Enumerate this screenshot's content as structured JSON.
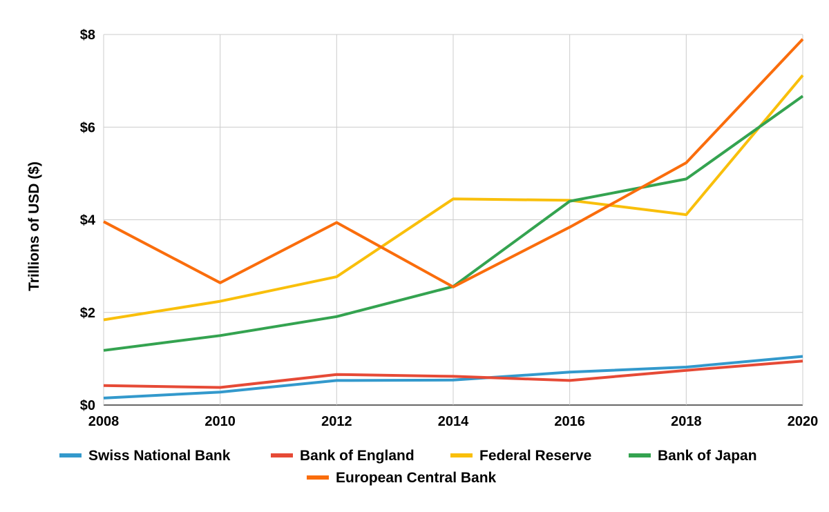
{
  "chart_data": {
    "type": "line",
    "title": "",
    "xlabel": "",
    "ylabel": "Trillions of USD ($)",
    "x": [
      2008,
      2010,
      2012,
      2014,
      2016,
      2018,
      2020
    ],
    "xlim": [
      2008,
      2020
    ],
    "ylim": [
      0,
      8
    ],
    "y_ticks": [
      0,
      2,
      4,
      6,
      8
    ],
    "y_tick_labels": [
      "$0",
      "$2",
      "$4",
      "$6",
      "$8"
    ],
    "grid": true,
    "legend_position": "bottom",
    "series": [
      {
        "name": "Swiss National Bank",
        "color": "#3399cc",
        "values": [
          0.15,
          0.28,
          0.53,
          0.54,
          0.71,
          0.82,
          1.05
        ]
      },
      {
        "name": "Bank of England",
        "color": "#e64a36",
        "values": [
          0.42,
          0.38,
          0.66,
          0.62,
          0.53,
          0.75,
          0.95
        ]
      },
      {
        "name": "Federal Reserve",
        "color": "#f9bf0b",
        "values": [
          1.84,
          2.24,
          2.77,
          4.45,
          4.42,
          4.11,
          7.12
        ]
      },
      {
        "name": "Bank of Japan",
        "color": "#34a350",
        "values": [
          1.18,
          1.5,
          1.91,
          2.56,
          4.4,
          4.88,
          6.67
        ]
      },
      {
        "name": "European Central Bank",
        "color": "#fa6d0c",
        "values": [
          3.96,
          2.64,
          3.94,
          2.55,
          3.84,
          5.23,
          7.9
        ]
      }
    ]
  }
}
